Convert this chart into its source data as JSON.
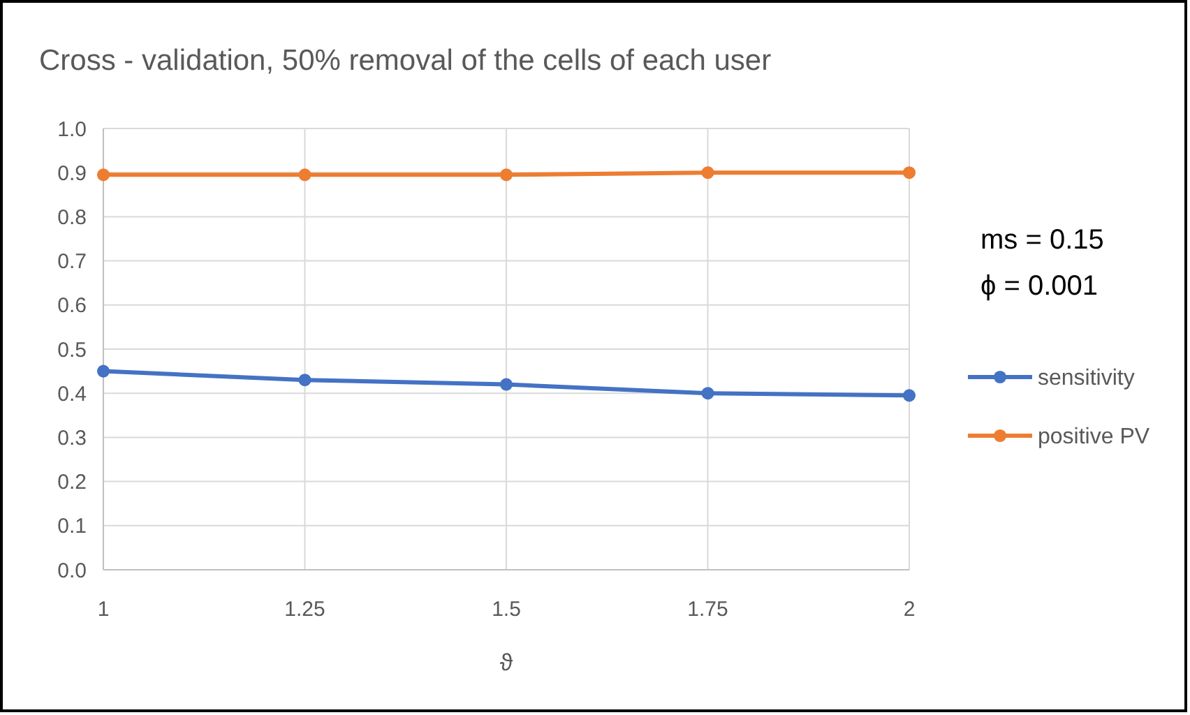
{
  "chart_data": {
    "type": "line",
    "title": "Cross - validation, 50% removal of the cells of each user",
    "xlabel": "ϑ",
    "x": [
      1,
      1.25,
      1.5,
      1.75,
      2
    ],
    "xlim": [
      1,
      2
    ],
    "xticks": [
      1,
      1.25,
      1.5,
      1.75,
      2
    ],
    "ylim": [
      0,
      1
    ],
    "yticks": [
      {
        "value": 0,
        "label": "0.0"
      },
      {
        "value": 0.1,
        "label": "0.1"
      },
      {
        "value": 0.2,
        "label": "0.2"
      },
      {
        "value": 0.3,
        "label": "0.3"
      },
      {
        "value": 0.4,
        "label": "0.4"
      },
      {
        "value": 0.5,
        "label": "0.5"
      },
      {
        "value": 0.6,
        "label": "0.6"
      },
      {
        "value": 0.7,
        "label": "0.7"
      },
      {
        "value": 0.8,
        "label": "0.8"
      },
      {
        "value": 0.9,
        "label": "0.9"
      },
      {
        "value": 1,
        "label": "1.0"
      }
    ],
    "series": [
      {
        "name": "sensitivity",
        "color": "#4472c4",
        "values": [
          0.45,
          0.43,
          0.42,
          0.4,
          0.395
        ]
      },
      {
        "name": "positive PV",
        "color": "#ed7d31",
        "values": [
          0.895,
          0.895,
          0.895,
          0.9,
          0.9
        ]
      }
    ],
    "annotations": [
      "ms = 0.15",
      "ϕ = 0.001"
    ],
    "grid": true,
    "legend": "right",
    "marker": "circle",
    "line_style": "solid"
  }
}
